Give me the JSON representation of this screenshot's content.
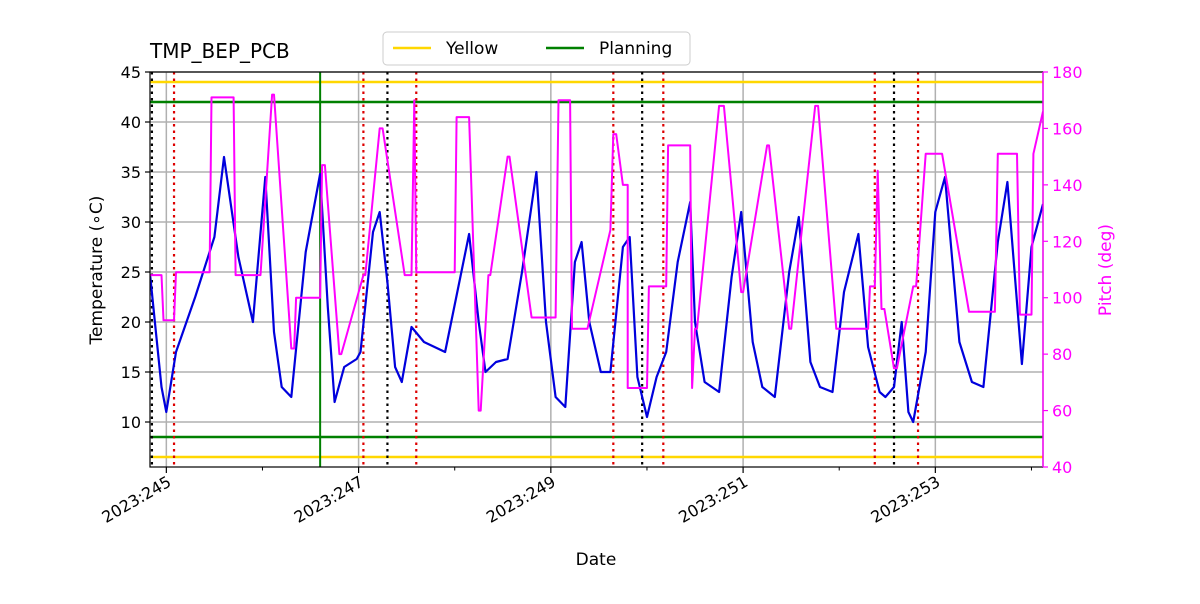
{
  "chart_data": {
    "type": "line",
    "title": "TMP_BEP_PCB",
    "xlabel": "Date",
    "ylabel": "Temperature ($^\\circ$C)",
    "ylabel_display": "Temperature (∘C)",
    "y2label": "Pitch (deg)",
    "x_range": [
      244.83,
      254.12
    ],
    "ylim": [
      5.5,
      45
    ],
    "y2lim": [
      40,
      180
    ],
    "grid": true,
    "x_ticks": [
      {
        "value": 245,
        "label": "2023:245"
      },
      {
        "value": 247,
        "label": "2023:247"
      },
      {
        "value": 249,
        "label": "2023:249"
      },
      {
        "value": 251,
        "label": "2023:251"
      },
      {
        "value": 253,
        "label": "2023:253"
      }
    ],
    "x_minor_ticks": [
      246,
      248,
      250,
      252,
      254
    ],
    "y_ticks": [
      10,
      15,
      20,
      25,
      30,
      35,
      40,
      45
    ],
    "y2_ticks": [
      40,
      60,
      80,
      100,
      120,
      140,
      160,
      180
    ],
    "colors": {
      "temperature": "#0000dd",
      "pitch": "#ff00ff",
      "yellow": "#ffd700",
      "planning": "#008000",
      "red_marker": "#dd0000",
      "black_marker": "#000000",
      "grid": "#b0b0b0"
    },
    "legend": {
      "position": "top-center",
      "entries": [
        {
          "label": "Yellow",
          "color": "#ffd700"
        },
        {
          "label": "Planning",
          "color": "#008000"
        }
      ]
    },
    "limits": {
      "yellow": [
        6.5,
        44
      ],
      "planning": [
        8.5,
        42
      ]
    },
    "planning_vline": 246.6,
    "red_vlines": [
      245.08,
      247.05,
      247.6,
      249.65,
      250.17,
      252.37,
      252.82
    ],
    "black_vlines": [
      244.85,
      247.3,
      249.95,
      252.57
    ],
    "series": [
      {
        "name": "Temperature",
        "axis": "left",
        "x": [
          244.83,
          244.95,
          245.0,
          245.1,
          245.3,
          245.5,
          245.6,
          245.75,
          245.9,
          246.03,
          246.12,
          246.2,
          246.3,
          246.45,
          246.6,
          246.68,
          246.75,
          246.85,
          246.98,
          247.02,
          247.15,
          247.22,
          247.3,
          247.38,
          247.45,
          247.55,
          247.68,
          247.9,
          248.15,
          248.25,
          248.32,
          248.43,
          248.55,
          248.7,
          248.85,
          248.95,
          249.05,
          249.15,
          249.25,
          249.32,
          249.4,
          249.52,
          249.62,
          249.75,
          249.82,
          249.9,
          250.0,
          250.1,
          250.2,
          250.32,
          250.45,
          250.5,
          250.6,
          250.75,
          250.88,
          250.98,
          251.1,
          251.2,
          251.33,
          251.48,
          251.58,
          251.7,
          251.8,
          251.93,
          252.05,
          252.2,
          252.3,
          252.42,
          252.48,
          252.57,
          252.65,
          252.72,
          252.77,
          252.9,
          253.0,
          253.1,
          253.25,
          253.38,
          253.5,
          253.65,
          253.75,
          253.9,
          254.0,
          254.12
        ],
        "values": [
          24.8,
          13.5,
          11.0,
          17.0,
          22.5,
          28.5,
          36.5,
          26.5,
          20.0,
          34.5,
          19.0,
          13.5,
          12.5,
          27.0,
          34.8,
          21.5,
          12.0,
          15.5,
          16.3,
          17.0,
          29.0,
          31.0,
          24.0,
          15.5,
          14.0,
          19.5,
          18.0,
          17.0,
          28.8,
          20.0,
          15.0,
          16.0,
          16.3,
          25.0,
          35.0,
          20.0,
          12.5,
          11.5,
          26.0,
          28.0,
          20.0,
          15.0,
          15.0,
          27.5,
          28.5,
          14.5,
          10.5,
          14.5,
          17.0,
          26.0,
          32.0,
          20.0,
          14.0,
          13.0,
          24.5,
          31.0,
          18.0,
          13.5,
          12.5,
          25.0,
          30.5,
          16.0,
          13.5,
          13.0,
          23.0,
          28.8,
          17.5,
          13.0,
          12.5,
          13.5,
          20.0,
          11.0,
          10.0,
          17.0,
          31.0,
          34.5,
          18.0,
          14.0,
          13.5,
          28.0,
          34.0,
          15.8,
          27.5,
          31.8
        ]
      },
      {
        "name": "Pitch",
        "axis": "right",
        "x": [
          244.83,
          244.95,
          244.97,
          245.08,
          245.1,
          245.45,
          245.47,
          245.7,
          245.72,
          245.98,
          246.1,
          246.12,
          246.3,
          246.33,
          246.35,
          246.6,
          246.62,
          246.65,
          246.8,
          246.82,
          247.05,
          247.07,
          247.22,
          247.25,
          247.48,
          247.55,
          247.58,
          247.6,
          248.0,
          248.02,
          248.15,
          248.25,
          248.27,
          248.35,
          248.37,
          248.55,
          248.57,
          248.8,
          248.82,
          249.05,
          249.08,
          249.2,
          249.22,
          249.35,
          249.38,
          249.62,
          249.65,
          249.68,
          249.75,
          249.8,
          249.8,
          249.82,
          250.0,
          250.02,
          250.2,
          250.22,
          250.45,
          250.47,
          250.5,
          250.52,
          250.75,
          250.77,
          250.8,
          250.98,
          251.0,
          251.25,
          251.27,
          251.48,
          251.5,
          251.75,
          251.78,
          251.97,
          252.0,
          252.3,
          252.32,
          252.37,
          252.4,
          252.44,
          252.47,
          252.57,
          252.6,
          252.77,
          252.8,
          252.9,
          253.05,
          253.07,
          253.35,
          253.37,
          253.62,
          253.65,
          253.85,
          253.88,
          254.0,
          254.02,
          254.12
        ],
        "values": [
          108,
          108,
          92,
          92,
          109,
          109,
          171,
          171,
          108,
          108,
          172,
          172,
          82,
          82,
          100,
          100,
          147,
          147,
          80,
          80,
          108,
          108,
          160,
          160,
          108,
          108,
          170,
          109,
          109,
          164,
          164,
          60,
          60,
          108,
          108,
          150,
          150,
          93,
          93,
          93,
          170,
          170,
          89,
          89,
          89,
          124,
          158,
          158,
          140,
          140,
          68,
          68,
          68,
          104,
          104,
          154,
          154,
          68,
          89,
          89,
          168,
          168,
          168,
          102,
          102,
          154,
          154,
          89,
          89,
          168,
          168,
          89,
          89,
          89,
          104,
          104,
          145,
          96,
          96,
          75,
          75,
          104,
          104,
          151,
          151,
          151,
          95,
          95,
          95,
          151,
          151,
          94,
          94,
          151,
          166
        ]
      }
    ]
  }
}
